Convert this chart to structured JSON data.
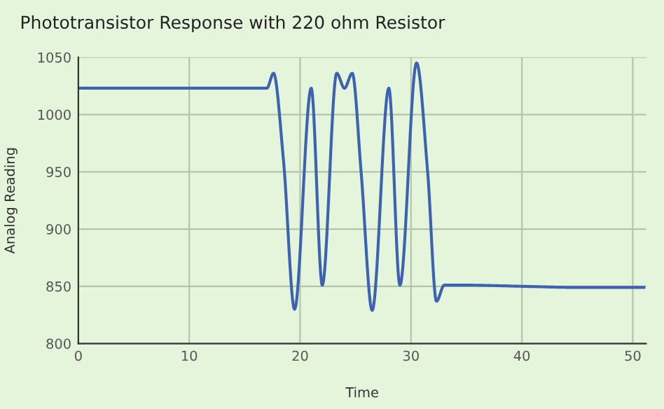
{
  "chart_data": {
    "type": "line",
    "title": "Phototransistor Response with 220 ohm Resistor",
    "xlabel": "Time",
    "ylabel": "Analog Reading",
    "x": [
      0,
      17,
      17.6,
      18.5,
      19.5,
      21,
      22,
      23.3,
      24,
      24.7,
      25.5,
      26.5,
      28,
      29,
      30.5,
      31.5,
      32.3,
      33,
      35,
      40,
      45,
      51
    ],
    "series": [
      {
        "color": "#3d62b0",
        "values": [
          1023,
          1023,
          1036,
          960,
          830,
          1023,
          851,
          1036,
          1023,
          1036,
          950,
          829,
          1023,
          851,
          1045,
          950,
          837,
          851,
          851,
          850,
          849,
          849
        ]
      }
    ],
    "xlim": [
      0,
      51.2
    ],
    "xticks": [
      0,
      10,
      20,
      30,
      40,
      50
    ],
    "ylim": [
      800,
      1050
    ],
    "yticks": [
      800,
      850,
      900,
      950,
      1000,
      1050
    ],
    "grid": true,
    "marker": "none",
    "line_style": "solid"
  }
}
